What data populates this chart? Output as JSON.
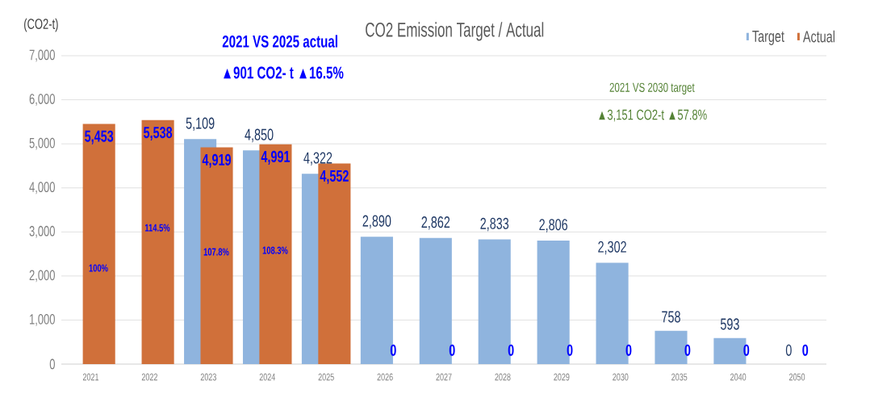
{
  "chart_data": {
    "type": "bar",
    "title": "CO2 Emission Target / Actual",
    "ylabel": "(CO2-t)",
    "categories": [
      "2021",
      "2022",
      "2023",
      "2024",
      "2025",
      "2026",
      "2027",
      "2028",
      "2029",
      "2030",
      "2035",
      "2040",
      "2050"
    ],
    "series": [
      {
        "name": "Target",
        "color": "#8fb4de",
        "values": [
          null,
          null,
          5109,
          4850,
          4322,
          2890,
          2862,
          2833,
          2806,
          2302,
          758,
          593,
          0
        ],
        "value_labels": [
          null,
          null,
          "5,109",
          "4,850",
          "4,322",
          "2,890",
          "2,862",
          "2,833",
          "2,806",
          "2,302",
          "758",
          "593",
          "0"
        ]
      },
      {
        "name": "Actual",
        "color": "#d0703a",
        "values": [
          5453,
          5538,
          4919,
          4991,
          4552,
          0,
          0,
          0,
          0,
          0,
          0,
          0,
          0
        ],
        "value_labels": [
          "5,453",
          "5,538",
          "4,919",
          "4,991",
          "4,552",
          "0",
          "0",
          "0",
          "0",
          "0",
          "0",
          "0",
          "0"
        ]
      }
    ],
    "ylim": [
      0,
      7000
    ],
    "yticks": [
      {
        "value": 0,
        "label": "0"
      },
      {
        "value": 1000,
        "label": "1,000"
      },
      {
        "value": 2000,
        "label": "2,000"
      },
      {
        "value": 3000,
        "label": "3,000"
      },
      {
        "value": 4000,
        "label": "4,000"
      },
      {
        "value": 5000,
        "label": "5,000"
      },
      {
        "value": 6000,
        "label": "6,000"
      },
      {
        "value": 7000,
        "label": "7,000"
      }
    ],
    "grid": "y",
    "legend": "top right",
    "annotations": [
      "2021 VS 2025 actual",
      "▲901 CO2- t ▲16.5%",
      "2021 VS 2030 target",
      "▲3,151 CO2-t ▲57.8%",
      "100%",
      "114.5%",
      "107.8%",
      "108.3%"
    ]
  }
}
